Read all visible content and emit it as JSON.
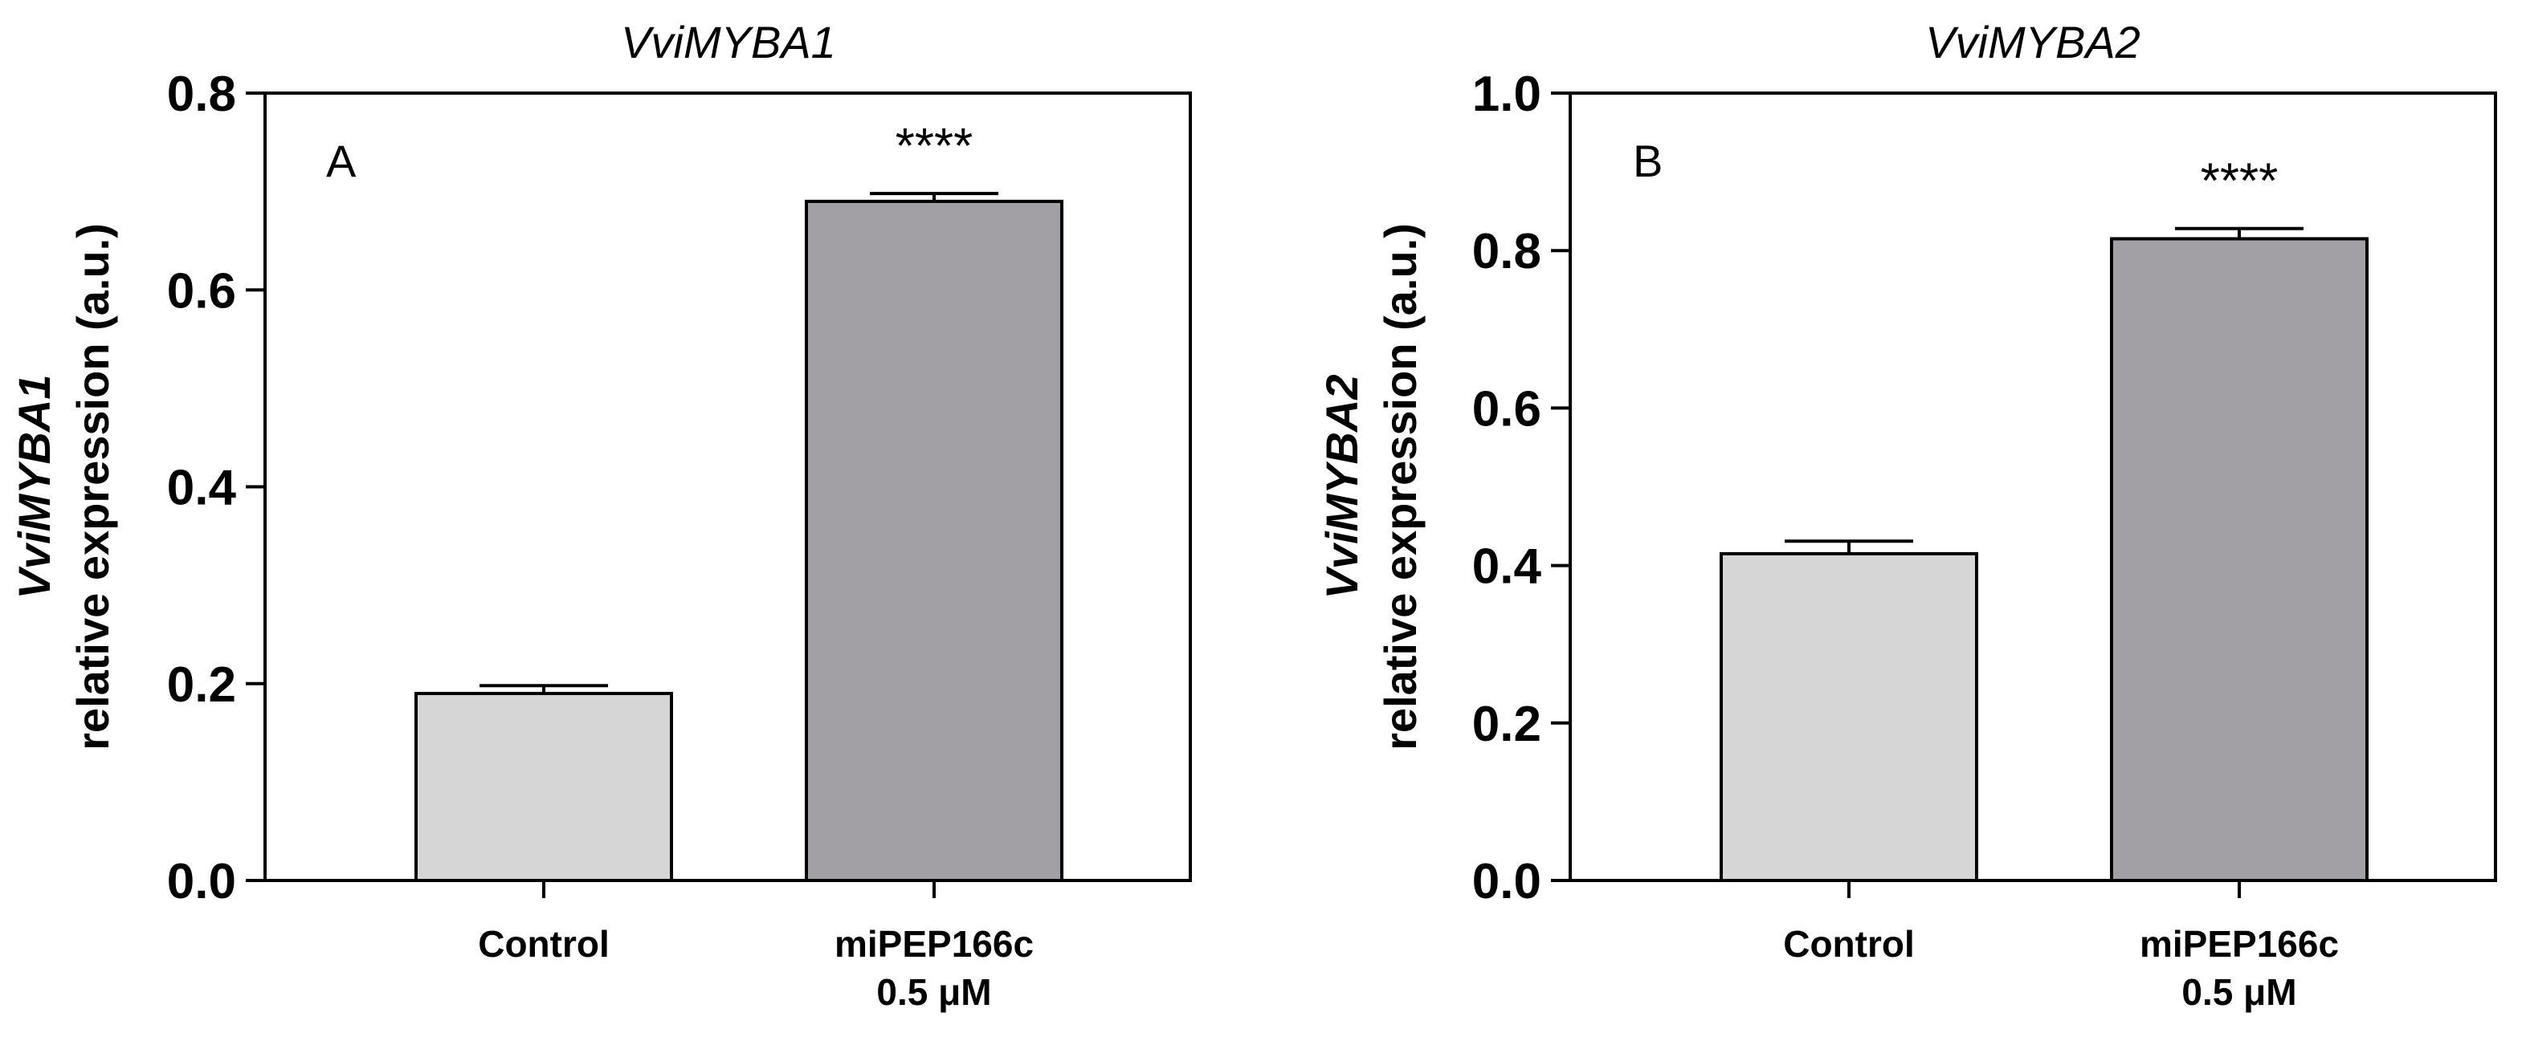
{
  "chart_data": [
    {
      "type": "bar",
      "panel_label": "A",
      "title": "VviMYBA1",
      "ylabel_gene": "VviMYBA1",
      "ylabel": "relative expression (a.u.)",
      "xlabel": "",
      "categories": [
        {
          "line1": "Control",
          "line2": ""
        },
        {
          "line1": "miPEP166c",
          "line2": "0.5 μM"
        }
      ],
      "values": [
        0.19,
        0.69
      ],
      "errors": [
        0.008,
        0.008
      ],
      "significance": [
        "",
        "****"
      ],
      "bar_colors": [
        "#d6d6d6",
        "#a2a0a4"
      ],
      "ylim": [
        0,
        0.8
      ],
      "yticks": [
        0,
        0.2,
        0.4,
        0.6,
        0.8
      ],
      "ytick_labels": [
        "0.0",
        "0.2",
        "0.4",
        "0.6",
        "0.8"
      ],
      "grid": false,
      "legend": "none"
    },
    {
      "type": "bar",
      "panel_label": "B",
      "title": "VviMYBA2",
      "ylabel_gene": "VviMYBA2",
      "ylabel": "relative expression (a.u.)",
      "xlabel": "",
      "categories": [
        {
          "line1": "Control",
          "line2": ""
        },
        {
          "line1": "miPEP166c",
          "line2": "0.5 μM"
        }
      ],
      "values": [
        0.415,
        0.815
      ],
      "errors": [
        0.016,
        0.013
      ],
      "significance": [
        "",
        "****"
      ],
      "bar_colors": [
        "#d6d6d6",
        "#a2a0a4"
      ],
      "ylim": [
        0,
        1.0
      ],
      "yticks": [
        0,
        0.2,
        0.4,
        0.6,
        0.8,
        1.0
      ],
      "ytick_labels": [
        "0.0",
        "0.2",
        "0.4",
        "0.6",
        "0.8",
        "1.0"
      ],
      "grid": false,
      "legend": "none"
    }
  ]
}
